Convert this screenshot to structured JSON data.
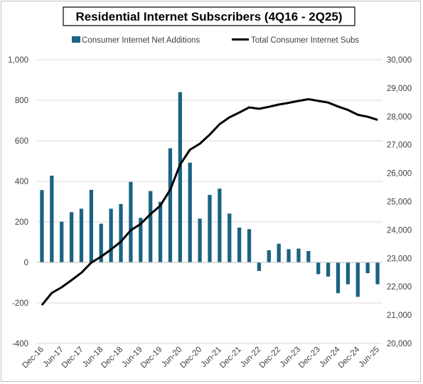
{
  "chart_data": {
    "type": "bar+line",
    "title": "Residential Internet Subscribers (4Q16 - 2Q25)",
    "legend": {
      "placement": "top"
    },
    "colors": {
      "bars": "#1b6382",
      "line": "#000000",
      "grid": "#d9d9d9",
      "title_border": "#000000"
    },
    "categories": [
      "Dec-16",
      "Mar-17",
      "Jun-17",
      "Sep-17",
      "Dec-17",
      "Mar-18",
      "Jun-18",
      "Sep-18",
      "Dec-18",
      "Mar-19",
      "Jun-19",
      "Sep-19",
      "Dec-19",
      "Mar-20",
      "Jun-20",
      "Sep-20",
      "Dec-20",
      "Mar-21",
      "Jun-21",
      "Sep-21",
      "Dec-21",
      "Mar-22",
      "Jun-22",
      "Sep-22",
      "Dec-22",
      "Mar-23",
      "Jun-23",
      "Sep-23",
      "Dec-23",
      "Mar-24",
      "Jun-24",
      "Sep-24",
      "Dec-24",
      "Mar-25",
      "Jun-25"
    ],
    "x_tick_labels": [
      "Dec-16",
      "Jun-17",
      "Dec-17",
      "Jun-18",
      "Dec-18",
      "Jun-19",
      "Dec-19",
      "Jun-20",
      "Dec-20",
      "Jun-21",
      "Dec-21",
      "Jun-22",
      "Dec-22",
      "Jun-23",
      "Dec-23",
      "Jun-24",
      "Dec-24",
      "Jun-25"
    ],
    "series": [
      {
        "name": "Consumer Internet Net Additions",
        "type": "bar",
        "axis": "left",
        "values": [
          357,
          428,
          201,
          248,
          265,
          358,
          191,
          265,
          288,
          397,
          220,
          352,
          299,
          563,
          840,
          492,
          216,
          333,
          364,
          241,
          172,
          164,
          -42,
          60,
          92,
          65,
          68,
          56,
          -58,
          -70,
          -152,
          -108,
          -170,
          -53,
          -108
        ]
      },
      {
        "name": "Total Consumer Internet Subs",
        "type": "line",
        "axis": "right",
        "values": [
          21350,
          21780,
          21980,
          22230,
          22490,
          22850,
          23060,
          23310,
          23590,
          23990,
          24210,
          24560,
          24860,
          25420,
          26300,
          26830,
          27040,
          27360,
          27730,
          27970,
          28140,
          28320,
          28270,
          28340,
          28420,
          28480,
          28550,
          28610,
          28550,
          28490,
          28350,
          28230,
          28060,
          27990,
          27880
        ]
      }
    ],
    "y_left": {
      "min": -400,
      "max": 1000,
      "step": 200,
      "tick_labels": [
        "-400",
        "-200",
        "0",
        "200",
        "400",
        "600",
        "800",
        "1,000"
      ]
    },
    "y_right": {
      "min": 20000,
      "max": 30000,
      "step": 1000,
      "tick_labels": [
        "20,000",
        "21,000",
        "22,000",
        "23,000",
        "24,000",
        "25,000",
        "26,000",
        "27,000",
        "28,000",
        "29,000",
        "30,000"
      ]
    },
    "grid": true
  }
}
